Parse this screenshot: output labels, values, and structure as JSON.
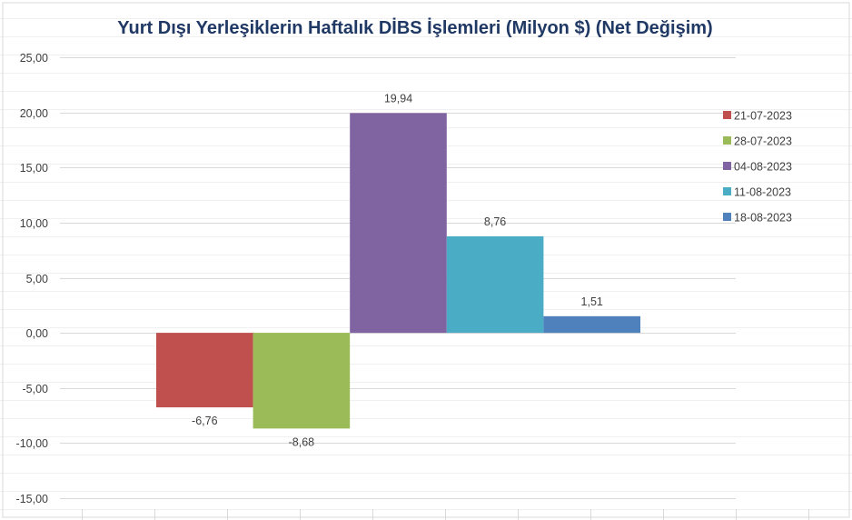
{
  "chart_data": {
    "type": "bar",
    "title": "Yurt Dışı Yerleşiklerin Haftalık DİBS İşlemleri (Milyon $) (Net Değişim)",
    "xlabel": "",
    "ylabel": "",
    "ylim": [
      -15,
      25
    ],
    "yticks": [
      "25,00",
      "20,00",
      "15,00",
      "10,00",
      "5,00",
      "0,00",
      "-5,00",
      "-10,00",
      "-15,00"
    ],
    "ytick_values": [
      25,
      20,
      15,
      10,
      5,
      0,
      -5,
      -10,
      -15
    ],
    "grid": true,
    "legend_position": "right",
    "series": [
      {
        "name": "21-07-2023",
        "value": -6.76,
        "label": "-6,76",
        "color": "#c0504d"
      },
      {
        "name": "28-07-2023",
        "value": -8.68,
        "label": "-8,68",
        "color": "#9bbb59"
      },
      {
        "name": "04-08-2023",
        "value": 19.94,
        "label": "19,94",
        "color": "#8064a2"
      },
      {
        "name": "11-08-2023",
        "value": 8.76,
        "label": "8,76",
        "color": "#4bacc6"
      },
      {
        "name": "18-08-2023",
        "value": 1.51,
        "label": "1,51",
        "color": "#4f81bd"
      }
    ]
  }
}
